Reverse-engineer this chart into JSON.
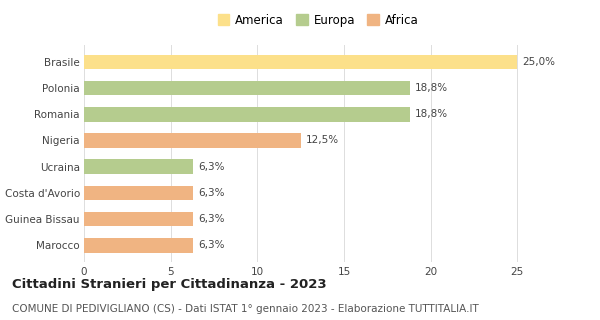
{
  "categories": [
    "Marocco",
    "Guinea Bissau",
    "Costa d'Avorio",
    "Ucraina",
    "Nigeria",
    "Romania",
    "Polonia",
    "Brasile"
  ],
  "values": [
    6.3,
    6.3,
    6.3,
    6.3,
    12.5,
    18.8,
    18.8,
    25.0
  ],
  "labels": [
    "6,3%",
    "6,3%",
    "6,3%",
    "6,3%",
    "12,5%",
    "18,8%",
    "18,8%",
    "25,0%"
  ],
  "colors": [
    "#f0b482",
    "#f0b482",
    "#f0b482",
    "#b5cc8e",
    "#f0b482",
    "#b5cc8e",
    "#b5cc8e",
    "#fce08a"
  ],
  "legend_items": [
    {
      "label": "America",
      "color": "#fce08a"
    },
    {
      "label": "Europa",
      "color": "#b5cc8e"
    },
    {
      "label": "Africa",
      "color": "#f0b482"
    }
  ],
  "xlim": [
    0,
    27
  ],
  "xticks": [
    0,
    5,
    10,
    15,
    20,
    25
  ],
  "title": "Cittadini Stranieri per Cittadinanza - 2023",
  "subtitle": "COMUNE DI PEDIVIGLIANO (CS) - Dati ISTAT 1° gennaio 2023 - Elaborazione TUTTITALIA.IT",
  "title_fontsize": 9.5,
  "subtitle_fontsize": 7.5,
  "label_fontsize": 7.5,
  "tick_fontsize": 7.5,
  "legend_fontsize": 8.5,
  "bar_height": 0.55,
  "background_color": "#ffffff",
  "grid_color": "#dddddd"
}
